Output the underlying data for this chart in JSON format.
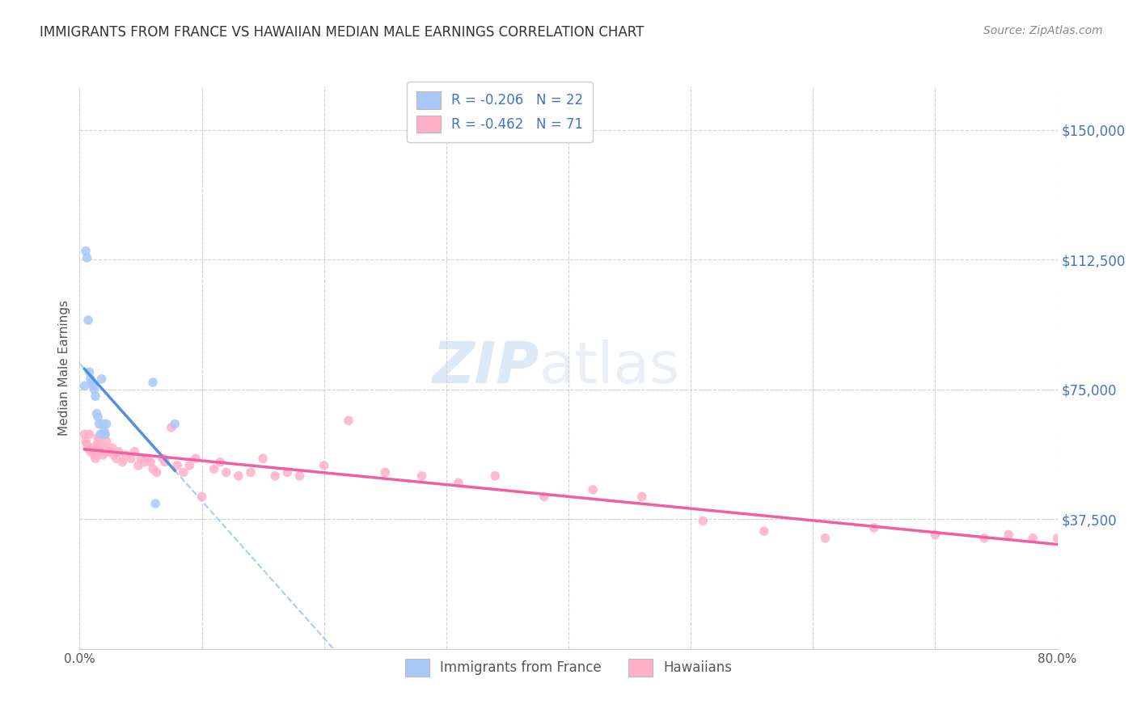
{
  "title": "IMMIGRANTS FROM FRANCE VS HAWAIIAN MEDIAN MALE EARNINGS CORRELATION CHART",
  "source": "Source: ZipAtlas.com",
  "ylabel": "Median Male Earnings",
  "ytick_labels": [
    "$37,500",
    "$75,000",
    "$112,500",
    "$150,000"
  ],
  "ytick_values": [
    37500,
    75000,
    112500,
    150000
  ],
  "ymin": 0,
  "ymax": 162500,
  "xmin": 0.0,
  "xmax": 0.8,
  "legend_france": "R = -0.206   N = 22",
  "legend_hawaii": "R = -0.462   N = 71",
  "legend_label_france": "Immigrants from France",
  "legend_label_hawaii": "Hawaiians",
  "color_france": "#a8c8f8",
  "color_hawaii": "#ffb0c8",
  "color_france_line": "#5090e0",
  "color_hawaii_line": "#f060a0",
  "color_trendline_dashed": "#90c0f0",
  "watermark_zip": "ZIP",
  "watermark_atlas": "atlas",
  "france_x": [
    0.004,
    0.005,
    0.006,
    0.007,
    0.008,
    0.009,
    0.01,
    0.011,
    0.012,
    0.013,
    0.014,
    0.015,
    0.016,
    0.017,
    0.018,
    0.019,
    0.02,
    0.021,
    0.022,
    0.06,
    0.062,
    0.078
  ],
  "france_y": [
    76000,
    115000,
    113000,
    95000,
    80000,
    78000,
    77000,
    76000,
    75000,
    73000,
    68000,
    67000,
    65000,
    62000,
    78000,
    65000,
    63000,
    62000,
    65000,
    77000,
    42000,
    65000
  ],
  "hawaii_x": [
    0.004,
    0.005,
    0.006,
    0.007,
    0.008,
    0.009,
    0.01,
    0.011,
    0.012,
    0.013,
    0.014,
    0.015,
    0.016,
    0.017,
    0.018,
    0.019,
    0.02,
    0.021,
    0.022,
    0.023,
    0.025,
    0.027,
    0.028,
    0.03,
    0.032,
    0.035,
    0.038,
    0.042,
    0.045,
    0.048,
    0.05,
    0.053,
    0.055,
    0.058,
    0.06,
    0.063,
    0.068,
    0.07,
    0.075,
    0.08,
    0.085,
    0.09,
    0.095,
    0.1,
    0.11,
    0.115,
    0.12,
    0.13,
    0.14,
    0.15,
    0.16,
    0.17,
    0.18,
    0.2,
    0.22,
    0.25,
    0.28,
    0.31,
    0.34,
    0.38,
    0.42,
    0.46,
    0.51,
    0.56,
    0.61,
    0.65,
    0.7,
    0.74,
    0.76,
    0.78,
    0.8
  ],
  "hawaii_y": [
    62000,
    60000,
    59000,
    58000,
    62000,
    57000,
    58000,
    57000,
    56000,
    55000,
    59000,
    61000,
    60000,
    58000,
    57000,
    56000,
    62000,
    58000,
    60000,
    57000,
    57000,
    58000,
    56000,
    55000,
    57000,
    54000,
    56000,
    55000,
    57000,
    53000,
    55000,
    54000,
    55000,
    54000,
    52000,
    51000,
    55000,
    54000,
    64000,
    53000,
    51000,
    53000,
    55000,
    44000,
    52000,
    54000,
    51000,
    50000,
    51000,
    55000,
    50000,
    51000,
    50000,
    53000,
    66000,
    51000,
    50000,
    48000,
    50000,
    44000,
    46000,
    44000,
    37000,
    34000,
    32000,
    35000,
    33000,
    32000,
    33000,
    32000,
    32000
  ],
  "france_trendline_x": [
    0.004,
    0.078
  ],
  "hawaii_trendline_x": [
    0.004,
    0.8
  ],
  "dashed_line_x": [
    0.004,
    0.8
  ]
}
